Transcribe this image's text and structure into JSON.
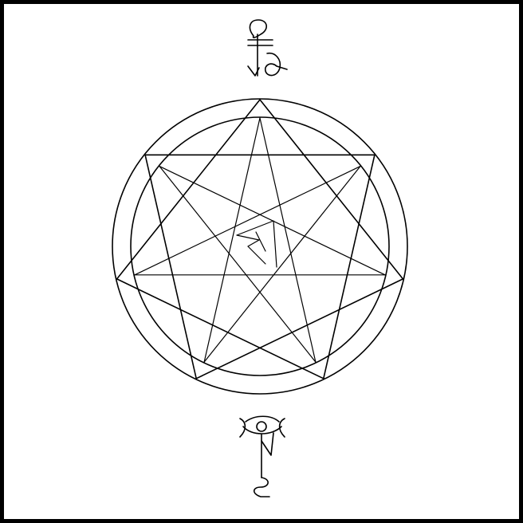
{
  "figure": {
    "stroke_color": "#000000",
    "background": "#ffffff",
    "border_color": "#000000"
  },
  "diagram": {
    "shape": "heptagram",
    "star_vertices": 7,
    "outer_star_step": 2,
    "inner_star_step": 3,
    "ring_count": 2,
    "glyphs": [
      "top-sigil",
      "center-sigil",
      "bottom-sigil"
    ]
  }
}
